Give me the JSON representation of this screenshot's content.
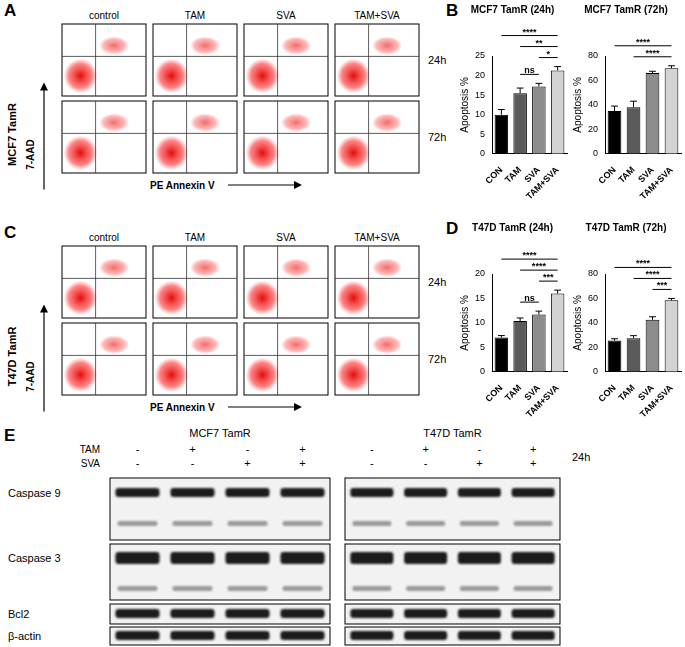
{
  "flow_cytometry": [
    {
      "panel": "A",
      "cell_line": "MCF7 TamR",
      "y_label": "7-AAD",
      "x_label": "PE Annexin V",
      "columns": [
        "control",
        "TAM",
        "SVA",
        "TAM+SVA"
      ],
      "rows": [
        "24h",
        "72h"
      ]
    },
    {
      "panel": "C",
      "cell_line": "T47D TamR",
      "y_label": "7-AAD",
      "x_label": "PE Annexin V",
      "columns": [
        "control",
        "TAM",
        "SVA",
        "TAM+SVA"
      ],
      "rows": [
        "24h",
        "72h"
      ]
    }
  ],
  "chart_data": [
    {
      "panel": "B",
      "type": "bar",
      "title": "MCF7 TamR (24h)",
      "y_label": "Apoptosis %",
      "categories": [
        "CON",
        "TAM",
        "SVA",
        "TAM+SVA"
      ],
      "values": [
        10,
        15.5,
        17.2,
        21.3
      ],
      "errors": [
        1.3,
        1.3,
        0.8,
        1.0
      ],
      "colors": [
        "#000000",
        "#5a5a5a",
        "#8c8c8c",
        "#d3d3d3"
      ],
      "ylim": [
        0,
        25
      ],
      "yticks": [
        0,
        5,
        10,
        15,
        20,
        25
      ],
      "grid": false,
      "annotations": [
        {
          "from": "CON",
          "to": "TAM+SVA",
          "label": "****"
        },
        {
          "from": "TAM",
          "to": "TAM+SVA",
          "label": "**"
        },
        {
          "from": "TAM",
          "to": "SVA",
          "label": "ns"
        },
        {
          "from": "SVA",
          "to": "TAM+SVA",
          "label": "*"
        }
      ]
    },
    {
      "type": "bar",
      "title": "MCF7 TamR (72h)",
      "y_label": "Apoptosis %",
      "categories": [
        "CON",
        "TAM",
        "SVA",
        "TAM+SVA"
      ],
      "values": [
        35,
        38,
        66,
        70
      ],
      "errors": [
        4,
        5,
        1.5,
        2
      ],
      "colors": [
        "#000000",
        "#5a5a5a",
        "#8c8c8c",
        "#d3d3d3"
      ],
      "ylim": [
        0,
        80
      ],
      "yticks": [
        0,
        20,
        40,
        60,
        80
      ],
      "grid": false,
      "annotations": [
        {
          "from": "CON",
          "to": "TAM+SVA",
          "label": "****"
        },
        {
          "from": "TAM",
          "to": "TAM+SVA",
          "label": "****"
        }
      ]
    },
    {
      "panel": "D",
      "type": "bar",
      "title": "T47D TamR (24h)",
      "y_label": "Apoptosis %",
      "categories": [
        "CON",
        "TAM",
        "SVA",
        "TAM+SVA"
      ],
      "values": [
        7,
        10.4,
        11.7,
        16
      ],
      "errors": [
        0.4,
        0.6,
        0.7,
        0.7
      ],
      "colors": [
        "#000000",
        "#5a5a5a",
        "#8c8c8c",
        "#d3d3d3"
      ],
      "ylim": [
        0,
        20
      ],
      "yticks": [
        0,
        5,
        10,
        15,
        20
      ],
      "grid": false,
      "annotations": [
        {
          "from": "CON",
          "to": "TAM+SVA",
          "label": "****"
        },
        {
          "from": "TAM",
          "to": "TAM+SVA",
          "label": "****"
        },
        {
          "from": "TAM",
          "to": "SVA",
          "label": "ns"
        },
        {
          "from": "SVA",
          "to": "TAM+SVA",
          "label": "***"
        }
      ]
    },
    {
      "type": "bar",
      "title": "T47D TamR (72h)",
      "y_label": "Apoptosis %",
      "categories": [
        "CON",
        "TAM",
        "SVA",
        "TAM+SVA"
      ],
      "values": [
        25.5,
        27.5,
        42.5,
        58.5
      ],
      "errors": [
        1.5,
        2,
        2.5,
        1.5
      ],
      "colors": [
        "#000000",
        "#5a5a5a",
        "#8c8c8c",
        "#d3d3d3"
      ],
      "ylim": [
        0,
        80
      ],
      "yticks": [
        0,
        20,
        40,
        60,
        80
      ],
      "grid": false,
      "annotations": [
        {
          "from": "CON",
          "to": "TAM+SVA",
          "label": "****"
        },
        {
          "from": "TAM",
          "to": "TAM+SVA",
          "label": "****"
        },
        {
          "from": "SVA",
          "to": "TAM+SVA",
          "label": "***"
        }
      ]
    }
  ],
  "western_blot": {
    "panel": "E",
    "groups": [
      "MCF7 TamR",
      "T47D TamR"
    ],
    "treatments": [
      {
        "name": "TAM",
        "lanes": [
          "-",
          "+",
          "-",
          "+"
        ]
      },
      {
        "name": "SVA",
        "lanes": [
          "-",
          "-",
          "+",
          "+"
        ]
      }
    ],
    "time": "24h",
    "proteins": [
      "Caspase 9",
      "Caspase 3",
      "Bcl2",
      "β-actin"
    ]
  }
}
